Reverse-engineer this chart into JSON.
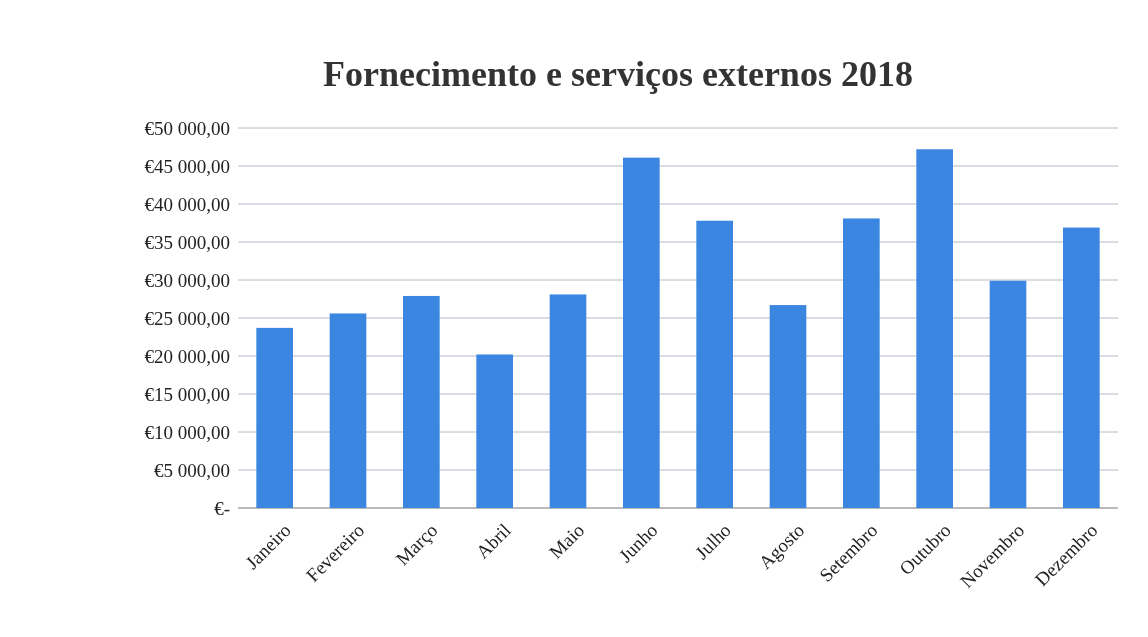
{
  "chart_data": {
    "type": "bar",
    "title": "Fornecimento e serviços externos 2018",
    "categories": [
      "Janeiro",
      "Fevereiro",
      "Março",
      "Abril",
      "Maio",
      "Junho",
      "Julho",
      "Agosto",
      "Setembro",
      "Outubro",
      "Novembro",
      "Dezembro"
    ],
    "values": [
      23700,
      25600,
      27900,
      20200,
      28100,
      46100,
      37800,
      26700,
      38100,
      47200,
      29900,
      36900
    ],
    "color": "#3a86e0",
    "ylim": [
      0,
      50000
    ],
    "yticks": [
      {
        "value": 0,
        "label": "€-"
      },
      {
        "value": 5000,
        "label": "€5 000,00"
      },
      {
        "value": 10000,
        "label": "€10 000,00"
      },
      {
        "value": 15000,
        "label": "€15 000,00"
      },
      {
        "value": 20000,
        "label": "€20 000,00"
      },
      {
        "value": 25000,
        "label": "€25 000,00"
      },
      {
        "value": 30000,
        "label": "€30 000,00"
      },
      {
        "value": 35000,
        "label": "€35 000,00"
      },
      {
        "value": 40000,
        "label": "€40 000,00"
      },
      {
        "value": 45000,
        "label": "€45 000,00"
      },
      {
        "value": 50000,
        "label": "€50 000,00"
      }
    ],
    "grid": "y"
  }
}
